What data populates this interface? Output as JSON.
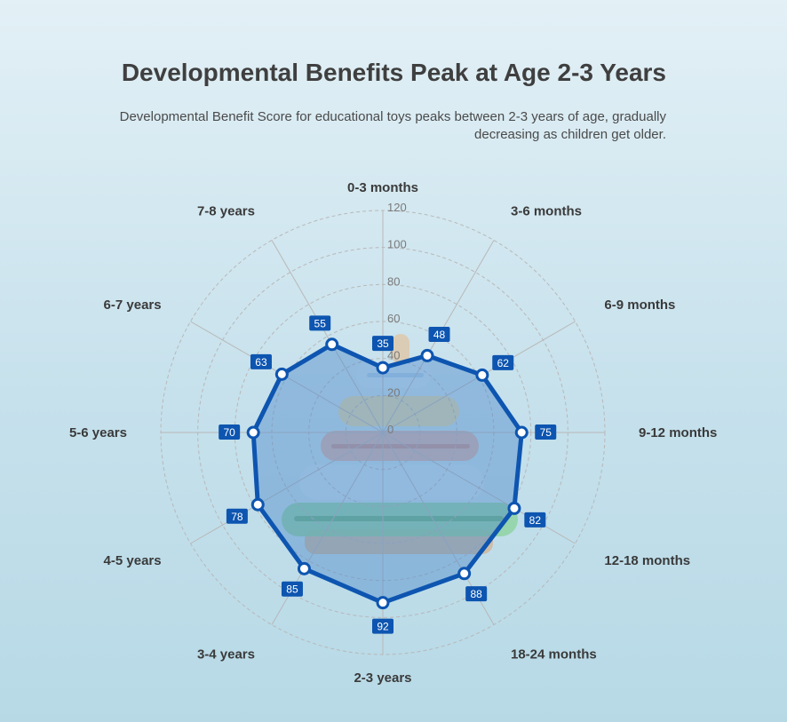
{
  "title": "Developmental Benefits Peak at Age 2-3 Years",
  "subtitle": "Developmental Benefit Score for educational toys peaks between 2-3 years of age, gradually decreasing as children get older.",
  "colors": {
    "series": "#0d55b0",
    "fill": "rgba(70,130,200,0.42)",
    "grid": "#b8b8b8",
    "badge": "#0d55b0"
  },
  "chart_data": {
    "type": "radar",
    "categories": [
      "0-3 months",
      "3-6 months",
      "6-9 months",
      "9-12 months",
      "12-18 months",
      "18-24 months",
      "2-3 years",
      "3-4 years",
      "4-5 years",
      "5-6 years",
      "6-7 years",
      "7-8 years"
    ],
    "series": [
      {
        "values": [
          35,
          48,
          62,
          75,
          82,
          88,
          92,
          85,
          78,
          70,
          63,
          55
        ]
      }
    ],
    "rlim": [
      0,
      120
    ],
    "ticks": [
      0,
      20,
      40,
      60,
      80,
      100,
      120
    ],
    "tick_labels": [
      "0",
      "20",
      "40",
      "60",
      "80",
      "100",
      "120"
    ],
    "grid": true,
    "data_labels": true
  }
}
